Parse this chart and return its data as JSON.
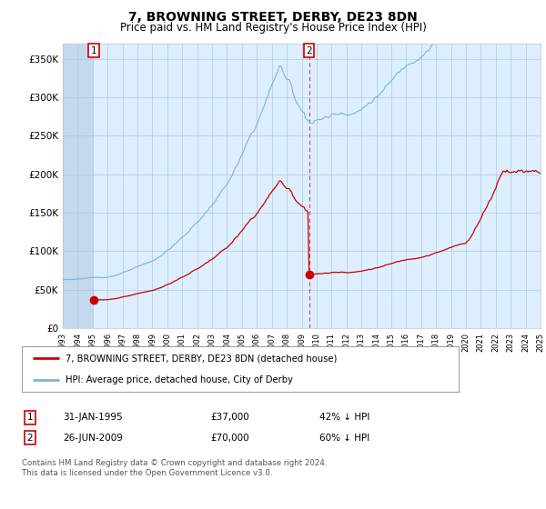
{
  "title": "7, BROWNING STREET, DERBY, DE23 8DN",
  "subtitle": "Price paid vs. HM Land Registry's House Price Index (HPI)",
  "title_fontsize": 10,
  "subtitle_fontsize": 8.5,
  "ylabel_ticks": [
    "£0",
    "£50K",
    "£100K",
    "£150K",
    "£200K",
    "£250K",
    "£300K",
    "£350K"
  ],
  "ylabel_values": [
    0,
    50000,
    100000,
    150000,
    200000,
    250000,
    300000,
    350000
  ],
  "ylim": [
    0,
    370000
  ],
  "year_start": 1993,
  "year_end": 2025,
  "hpi_color": "#7eb4d4",
  "price_color": "#cc0000",
  "bg_color": "#ddeeff",
  "bg_hatch_color": "#c4d8ee",
  "grid_color": "#b0c8dc",
  "sale1_date_num": 1995.08,
  "sale1_price": 37000,
  "sale1_label": "1",
  "sale2_date_num": 2009.49,
  "sale2_price": 70000,
  "sale2_label": "2",
  "legend_line1": "7, BROWNING STREET, DERBY, DE23 8DN (detached house)",
  "legend_line2": "HPI: Average price, detached house, City of Derby",
  "note1_label": "1",
  "note1_date": "31-JAN-1995",
  "note1_price": "£37,000",
  "note1_hpi": "42% ↓ HPI",
  "note2_label": "2",
  "note2_date": "26-JUN-2009",
  "note2_price": "£70,000",
  "note2_hpi": "60% ↓ HPI",
  "copyright": "Contains HM Land Registry data © Crown copyright and database right 2024.\nThis data is licensed under the Open Government Licence v3.0."
}
